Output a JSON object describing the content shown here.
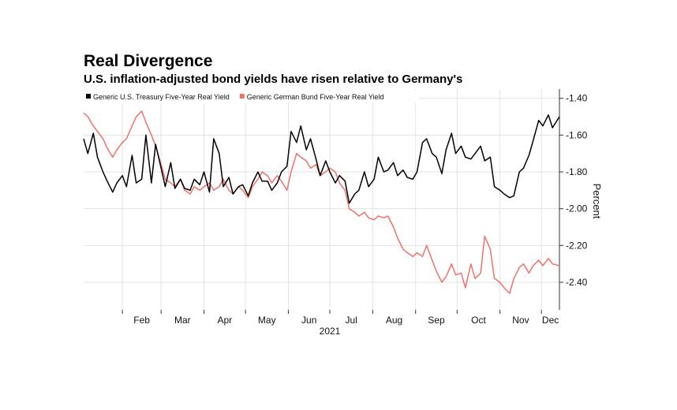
{
  "header": {
    "title": "Real Divergence",
    "subtitle": "U.S. inflation-adjusted bond yields have risen relative to Germany's"
  },
  "chart_data": {
    "type": "line",
    "title": "Real Divergence",
    "subtitle": "U.S. inflation-adjusted bond yields have risen relative to Germany's",
    "xlabel": "2021",
    "ylabel": "Percent",
    "x_ticks": [
      "Feb",
      "Mar",
      "Apr",
      "May",
      "Jun",
      "Jul",
      "Aug",
      "Sep",
      "Oct",
      "Nov",
      "Dec"
    ],
    "y_ticks": [
      -1.4,
      -1.6,
      -1.8,
      -2.0,
      -2.2,
      -2.4
    ],
    "ylim": [
      -2.55,
      -1.35
    ],
    "xlim": [
      "2021-01-04",
      "2021-12-14"
    ],
    "grid": true,
    "legend_position": "top-left",
    "series": [
      {
        "name": "Generic U.S. Treasury Five-Year Real Yield",
        "color": "#000000",
        "x": [
          "2021-01-04",
          "2021-01-07",
          "2021-01-11",
          "2021-01-14",
          "2021-01-18",
          "2021-01-21",
          "2021-01-25",
          "2021-01-28",
          "2021-02-01",
          "2021-02-04",
          "2021-02-08",
          "2021-02-11",
          "2021-02-15",
          "2021-02-18",
          "2021-02-22",
          "2021-02-25",
          "2021-03-01",
          "2021-03-04",
          "2021-03-08",
          "2021-03-11",
          "2021-03-15",
          "2021-03-18",
          "2021-03-22",
          "2021-03-25",
          "2021-03-29",
          "2021-04-01",
          "2021-04-05",
          "2021-04-08",
          "2021-04-12",
          "2021-04-15",
          "2021-04-19",
          "2021-04-22",
          "2021-04-26",
          "2021-04-29",
          "2021-05-03",
          "2021-05-06",
          "2021-05-10",
          "2021-05-13",
          "2021-05-17",
          "2021-05-20",
          "2021-05-24",
          "2021-05-27",
          "2021-05-31",
          "2021-06-03",
          "2021-06-07",
          "2021-06-10",
          "2021-06-14",
          "2021-06-17",
          "2021-06-21",
          "2021-06-24",
          "2021-06-28",
          "2021-07-01",
          "2021-07-05",
          "2021-07-08",
          "2021-07-12",
          "2021-07-15",
          "2021-07-19",
          "2021-07-22",
          "2021-07-26",
          "2021-07-29",
          "2021-08-02",
          "2021-08-05",
          "2021-08-09",
          "2021-08-12",
          "2021-08-16",
          "2021-08-19",
          "2021-08-23",
          "2021-08-26",
          "2021-08-30",
          "2021-09-02",
          "2021-09-06",
          "2021-09-09",
          "2021-09-13",
          "2021-09-16",
          "2021-09-20",
          "2021-09-23",
          "2021-09-27",
          "2021-09-30",
          "2021-10-04",
          "2021-10-07",
          "2021-10-11",
          "2021-10-14",
          "2021-10-18",
          "2021-10-21",
          "2021-10-25",
          "2021-10-28",
          "2021-11-01",
          "2021-11-04",
          "2021-11-08",
          "2021-11-11",
          "2021-11-15",
          "2021-11-18",
          "2021-11-22",
          "2021-11-25",
          "2021-11-29",
          "2021-12-02",
          "2021-12-06",
          "2021-12-09",
          "2021-12-14"
        ],
        "values": [
          -1.62,
          -1.7,
          -1.59,
          -1.72,
          -1.8,
          -1.85,
          -1.91,
          -1.86,
          -1.82,
          -1.88,
          -1.71,
          -1.86,
          -1.84,
          -1.6,
          -1.86,
          -1.65,
          -1.78,
          -1.88,
          -1.75,
          -1.89,
          -1.84,
          -1.89,
          -1.9,
          -1.84,
          -1.87,
          -1.8,
          -1.91,
          -1.62,
          -1.7,
          -1.88,
          -1.83,
          -1.92,
          -1.88,
          -1.87,
          -1.93,
          -1.86,
          -1.8,
          -1.85,
          -1.85,
          -1.9,
          -1.86,
          -1.8,
          -1.77,
          -1.58,
          -1.64,
          -1.55,
          -1.68,
          -1.62,
          -1.73,
          -1.82,
          -1.74,
          -1.8,
          -1.86,
          -1.82,
          -1.85,
          -1.97,
          -1.92,
          -1.9,
          -1.8,
          -1.88,
          -1.84,
          -1.72,
          -1.8,
          -1.79,
          -1.75,
          -1.82,
          -1.79,
          -1.83,
          -1.84,
          -1.8,
          -1.64,
          -1.62,
          -1.7,
          -1.72,
          -1.81,
          -1.68,
          -1.59,
          -1.7,
          -1.66,
          -1.72,
          -1.73,
          -1.7,
          -1.66,
          -1.74,
          -1.72,
          -1.88,
          -1.9,
          -1.92,
          -1.94,
          -1.93,
          -1.8,
          -1.78,
          -1.71,
          -1.63,
          -1.52,
          -1.55,
          -1.49,
          -1.56,
          -1.5
        ]
      },
      {
        "name": "Generic German Bund Five-Year Real Yield",
        "color": "#f07167",
        "x": [
          "2021-01-04",
          "2021-01-07",
          "2021-01-11",
          "2021-01-14",
          "2021-01-18",
          "2021-01-21",
          "2021-01-25",
          "2021-01-28",
          "2021-02-01",
          "2021-02-04",
          "2021-02-08",
          "2021-02-11",
          "2021-02-15",
          "2021-02-18",
          "2021-02-22",
          "2021-02-25",
          "2021-03-01",
          "2021-03-04",
          "2021-03-08",
          "2021-03-11",
          "2021-03-15",
          "2021-03-18",
          "2021-03-22",
          "2021-03-25",
          "2021-03-29",
          "2021-04-01",
          "2021-04-05",
          "2021-04-08",
          "2021-04-12",
          "2021-04-15",
          "2021-04-19",
          "2021-04-22",
          "2021-04-26",
          "2021-04-29",
          "2021-05-03",
          "2021-05-06",
          "2021-05-10",
          "2021-05-13",
          "2021-05-17",
          "2021-05-20",
          "2021-05-24",
          "2021-05-27",
          "2021-05-31",
          "2021-06-03",
          "2021-06-07",
          "2021-06-10",
          "2021-06-14",
          "2021-06-17",
          "2021-06-21",
          "2021-06-24",
          "2021-06-28",
          "2021-07-01",
          "2021-07-05",
          "2021-07-08",
          "2021-07-12",
          "2021-07-15",
          "2021-07-19",
          "2021-07-22",
          "2021-07-26",
          "2021-07-29",
          "2021-08-02",
          "2021-08-05",
          "2021-08-09",
          "2021-08-12",
          "2021-08-16",
          "2021-08-19",
          "2021-08-23",
          "2021-08-26",
          "2021-08-30",
          "2021-09-02",
          "2021-09-06",
          "2021-09-09",
          "2021-09-13",
          "2021-09-16",
          "2021-09-20",
          "2021-09-23",
          "2021-09-27",
          "2021-09-30",
          "2021-10-04",
          "2021-10-07",
          "2021-10-11",
          "2021-10-14",
          "2021-10-18",
          "2021-10-21",
          "2021-10-25",
          "2021-10-28",
          "2021-11-01",
          "2021-11-04",
          "2021-11-08",
          "2021-11-11",
          "2021-11-15",
          "2021-11-18",
          "2021-11-22",
          "2021-11-25",
          "2021-11-29",
          "2021-12-02",
          "2021-12-06",
          "2021-12-09",
          "2021-12-14"
        ],
        "values": [
          -1.48,
          -1.5,
          -1.55,
          -1.58,
          -1.62,
          -1.67,
          -1.72,
          -1.68,
          -1.64,
          -1.62,
          -1.55,
          -1.5,
          -1.47,
          -1.53,
          -1.6,
          -1.66,
          -1.76,
          -1.84,
          -1.86,
          -1.88,
          -1.84,
          -1.9,
          -1.92,
          -1.88,
          -1.9,
          -1.88,
          -1.86,
          -1.9,
          -1.88,
          -1.84,
          -1.9,
          -1.92,
          -1.88,
          -1.9,
          -1.94,
          -1.88,
          -1.84,
          -1.8,
          -1.82,
          -1.86,
          -1.82,
          -1.85,
          -1.9,
          -1.8,
          -1.7,
          -1.72,
          -1.74,
          -1.78,
          -1.76,
          -1.82,
          -1.8,
          -1.78,
          -1.8,
          -1.86,
          -1.9,
          -2.0,
          -2.02,
          -2.04,
          -2.02,
          -2.05,
          -2.06,
          -2.04,
          -2.05,
          -2.04,
          -2.1,
          -2.16,
          -2.22,
          -2.24,
          -2.26,
          -2.24,
          -2.26,
          -2.2,
          -2.28,
          -2.34,
          -2.4,
          -2.37,
          -2.3,
          -2.36,
          -2.35,
          -2.43,
          -2.3,
          -2.38,
          -2.35,
          -2.15,
          -2.22,
          -2.38,
          -2.4,
          -2.43,
          -2.46,
          -2.38,
          -2.32,
          -2.3,
          -2.35,
          -2.31,
          -2.28,
          -2.31,
          -2.27,
          -2.3,
          -2.31
        ]
      }
    ]
  }
}
